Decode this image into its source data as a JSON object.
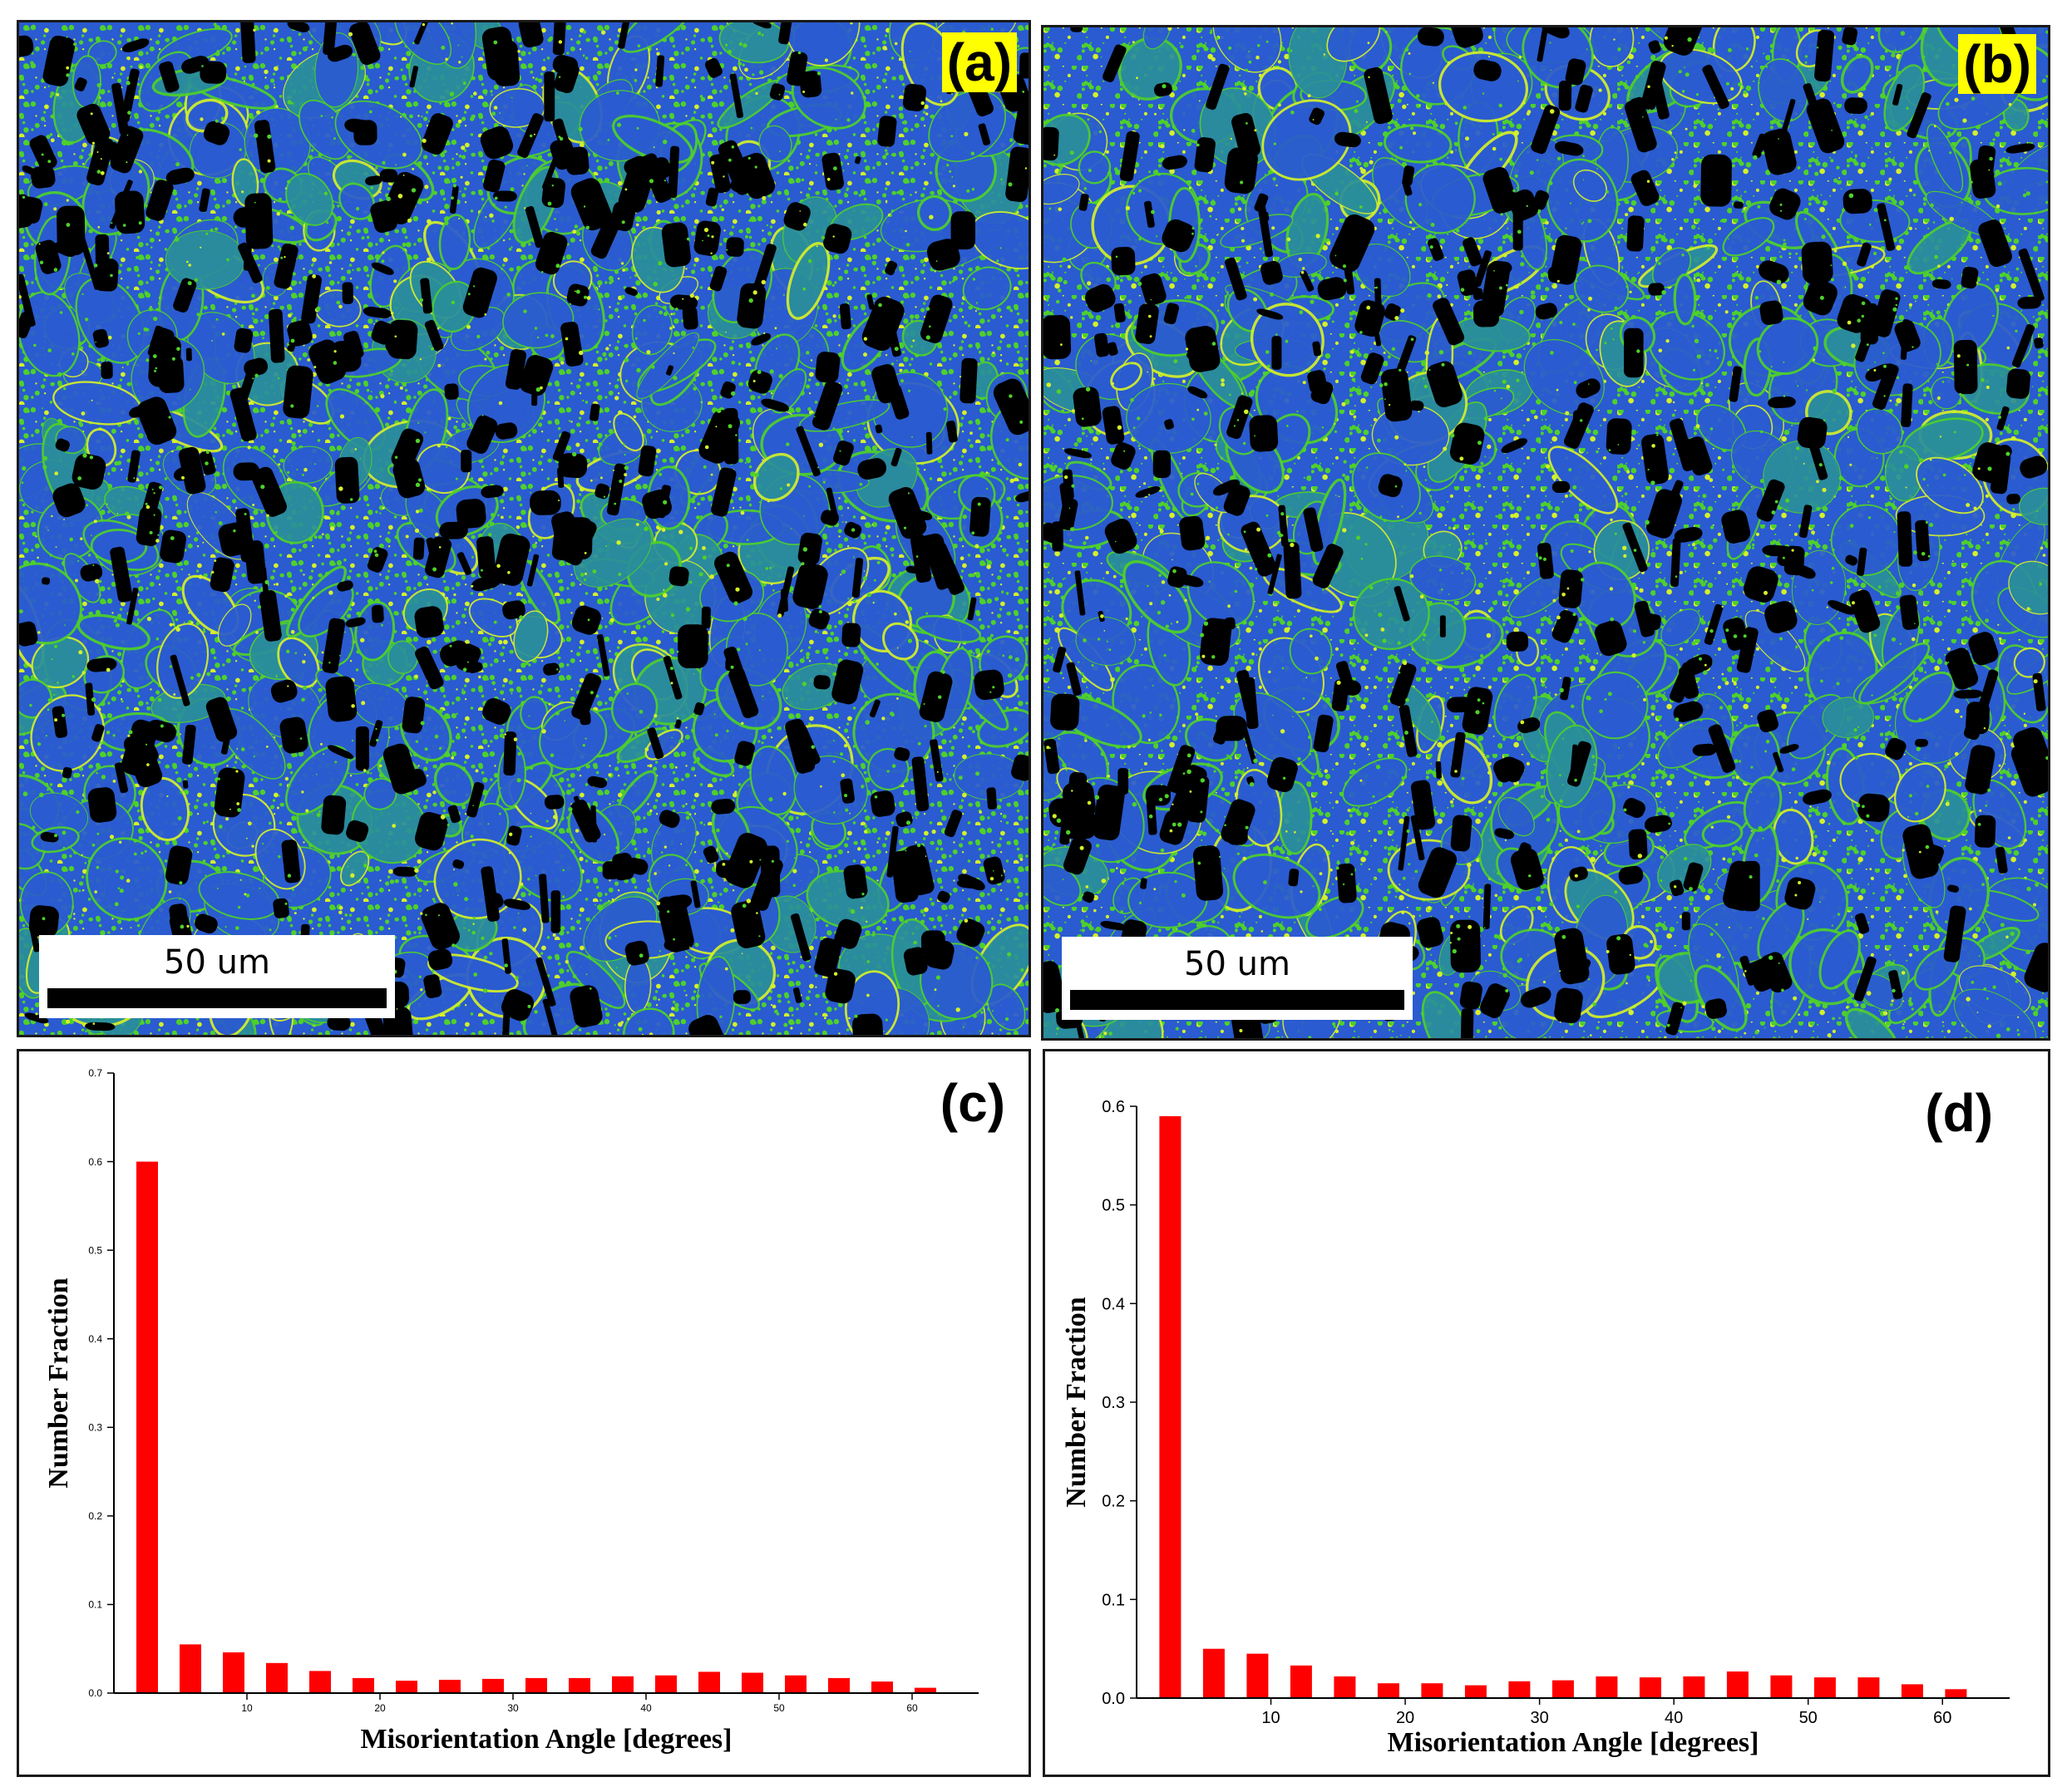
{
  "panels": {
    "a": {
      "label": "(a)",
      "scalebar": "50 um"
    },
    "b": {
      "label": "(b)",
      "scalebar": "50 um"
    },
    "c": {
      "label": "(c)"
    },
    "d": {
      "label": "(d)"
    }
  },
  "colors": {
    "map_background": "#000000",
    "grain_blue": "#2a5bd0",
    "grain_teal": "#2a8f9a",
    "boundary_green": "#4ed12a",
    "boundary_yellow": "#d4f02a",
    "bar_fill": "#ff0000",
    "label_highlight": "#ffff00"
  },
  "chart_data": [
    {
      "type": "bar",
      "xlabel": "Misorientation Angle [degrees]",
      "ylabel": "Number Fraction",
      "xlim": [
        0,
        65
      ],
      "ylim": [
        0,
        0.7
      ],
      "xticks": [
        10,
        20,
        30,
        40,
        50,
        60
      ],
      "yticks": [
        0.0,
        0.1,
        0.2,
        0.3,
        0.4,
        0.5,
        0.6,
        0.7
      ],
      "ytick_labels": [
        "0.0",
        "0.1",
        "0.2",
        "0.3",
        "0.4",
        "0.5",
        "0.6",
        "0.7"
      ],
      "x": [
        2.5,
        5.75,
        9,
        12.25,
        15.5,
        18.75,
        22,
        25.25,
        28.5,
        31.75,
        35,
        38.25,
        41.5,
        44.75,
        48,
        51.25,
        54.5,
        57.75,
        61
      ],
      "values": [
        0.6,
        0.055,
        0.046,
        0.034,
        0.025,
        0.017,
        0.014,
        0.015,
        0.016,
        0.017,
        0.017,
        0.019,
        0.02,
        0.024,
        0.023,
        0.02,
        0.017,
        0.013,
        0.006
      ]
    },
    {
      "type": "bar",
      "xlabel": "Misorientation Angle [degrees]",
      "ylabel": "Number Fraction",
      "xlim": [
        0,
        65
      ],
      "ylim": [
        0,
        0.6
      ],
      "xticks": [
        10,
        20,
        30,
        40,
        50,
        60
      ],
      "yticks": [
        0.0,
        0.1,
        0.2,
        0.3,
        0.4,
        0.5,
        0.6
      ],
      "ytick_labels": [
        "0.0",
        "0.1",
        "0.2",
        "0.3",
        "0.4",
        "0.5",
        "0.6"
      ],
      "x": [
        2.5,
        5.75,
        9,
        12.25,
        15.5,
        18.75,
        22,
        25.25,
        28.5,
        31.75,
        35,
        38.25,
        41.5,
        44.75,
        48,
        51.25,
        54.5,
        57.75,
        61
      ],
      "values": [
        0.59,
        0.05,
        0.045,
        0.033,
        0.022,
        0.015,
        0.015,
        0.013,
        0.017,
        0.018,
        0.022,
        0.021,
        0.022,
        0.027,
        0.023,
        0.021,
        0.021,
        0.014,
        0.009
      ]
    }
  ]
}
